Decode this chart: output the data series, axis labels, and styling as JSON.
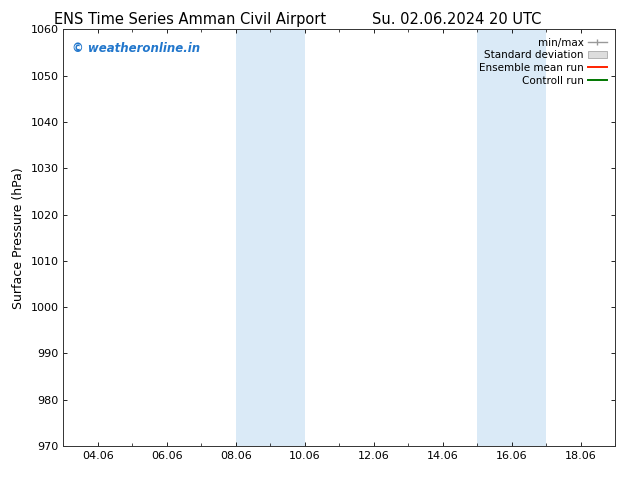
{
  "title_left": "ENS Time Series Amman Civil Airport",
  "title_right": "Su. 02.06.2024 20 UTC",
  "ylabel": "Surface Pressure (hPa)",
  "ylim": [
    970,
    1060
  ],
  "yticks": [
    970,
    980,
    990,
    1000,
    1010,
    1020,
    1030,
    1040,
    1050,
    1060
  ],
  "xlim": [
    3.0,
    19.0
  ],
  "xtick_labels": [
    "04.06",
    "06.06",
    "08.06",
    "10.06",
    "12.06",
    "14.06",
    "16.06",
    "18.06"
  ],
  "xtick_positions": [
    4,
    6,
    8,
    10,
    12,
    14,
    16,
    18
  ],
  "shaded_regions": [
    {
      "start": 8.0,
      "end": 10.0
    },
    {
      "start": 15.0,
      "end": 17.0
    }
  ],
  "shaded_color": "#daeaf7",
  "watermark_text": "© weatheronline.in",
  "watermark_color": "#2277cc",
  "legend_items": [
    {
      "label": "min/max",
      "color": "#aaaaaa"
    },
    {
      "label": "Standard deviation",
      "color": "#cccccc"
    },
    {
      "label": "Ensemble mean run",
      "color": "#ff0000"
    },
    {
      "label": "Controll run",
      "color": "#007700"
    }
  ],
  "bg_color": "#ffffff",
  "title_fontsize": 10.5,
  "tick_fontsize": 8,
  "ylabel_fontsize": 9,
  "legend_fontsize": 7.5
}
